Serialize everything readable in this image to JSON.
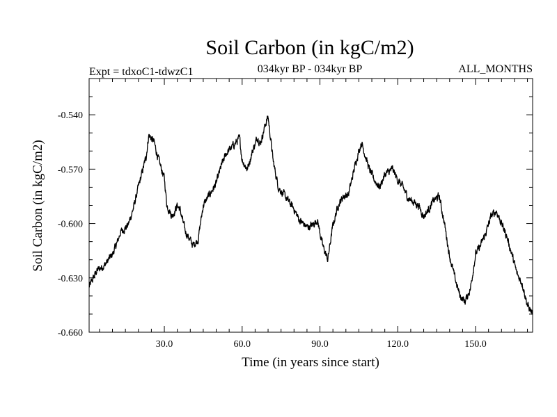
{
  "chart_data": {
    "type": "line",
    "title": "Soil Carbon (in kgC/m2)",
    "subtitle_left": "Expt = tdxoC1-tdwzC1",
    "subtitle_center": "034kyr BP - 034kyr BP",
    "subtitle_right": "ALL_MONTHS",
    "xlabel": "Time (in years since start)",
    "ylabel": "Soil Carbon (in kgC/m2)",
    "xlim": [
      1,
      172
    ],
    "ylim": [
      -0.66,
      -0.52
    ],
    "xticks": [
      30,
      60,
      90,
      120,
      150
    ],
    "xtick_labels": [
      "30.0",
      "60.0",
      "90.0",
      "120.0",
      "150.0"
    ],
    "yticks": [
      -0.54,
      -0.57,
      -0.6,
      -0.63,
      -0.66
    ],
    "ytick_labels": [
      "-0.540",
      "-0.570",
      "-0.600",
      "-0.630",
      "-0.660"
    ],
    "anchors": {
      "x": [
        1,
        4,
        7,
        10,
        12,
        13,
        16,
        18,
        20,
        23,
        24,
        26,
        28,
        30,
        31,
        33,
        35,
        36,
        38,
        41,
        43,
        45,
        47,
        50,
        52,
        54,
        56,
        59,
        60,
        62,
        64,
        66,
        67,
        69,
        70,
        72,
        74,
        76,
        78,
        80,
        82,
        85,
        87,
        89,
        91,
        93,
        95,
        97,
        99,
        101,
        104,
        106,
        107,
        109,
        111,
        113,
        115,
        116,
        118,
        120,
        122,
        124,
        126,
        128,
        130,
        132,
        134,
        136,
        138,
        140,
        142,
        144,
        146,
        148,
        150,
        152,
        154,
        156,
        158,
        160,
        162,
        164,
        166,
        168,
        170,
        172
      ],
      "y": [
        -0.635,
        -0.626,
        -0.623,
        -0.617,
        -0.61,
        -0.605,
        -0.601,
        -0.592,
        -0.58,
        -0.563,
        -0.551,
        -0.555,
        -0.566,
        -0.575,
        -0.59,
        -0.596,
        -0.59,
        -0.592,
        -0.604,
        -0.612,
        -0.609,
        -0.59,
        -0.585,
        -0.578,
        -0.568,
        -0.561,
        -0.558,
        -0.553,
        -0.565,
        -0.57,
        -0.56,
        -0.552,
        -0.556,
        -0.545,
        -0.541,
        -0.566,
        -0.58,
        -0.584,
        -0.588,
        -0.592,
        -0.598,
        -0.602,
        -0.601,
        -0.598,
        -0.612,
        -0.62,
        -0.601,
        -0.59,
        -0.585,
        -0.584,
        -0.565,
        -0.555,
        -0.56,
        -0.57,
        -0.576,
        -0.58,
        -0.573,
        -0.572,
        -0.57,
        -0.576,
        -0.58,
        -0.586,
        -0.588,
        -0.59,
        -0.596,
        -0.592,
        -0.587,
        -0.585,
        -0.6,
        -0.618,
        -0.63,
        -0.64,
        -0.643,
        -0.636,
        -0.617,
        -0.612,
        -0.605,
        -0.596,
        -0.593,
        -0.6,
        -0.607,
        -0.617,
        -0.628,
        -0.633,
        -0.645,
        -0.65
      ]
    },
    "noise_amplitude": 0.002
  }
}
